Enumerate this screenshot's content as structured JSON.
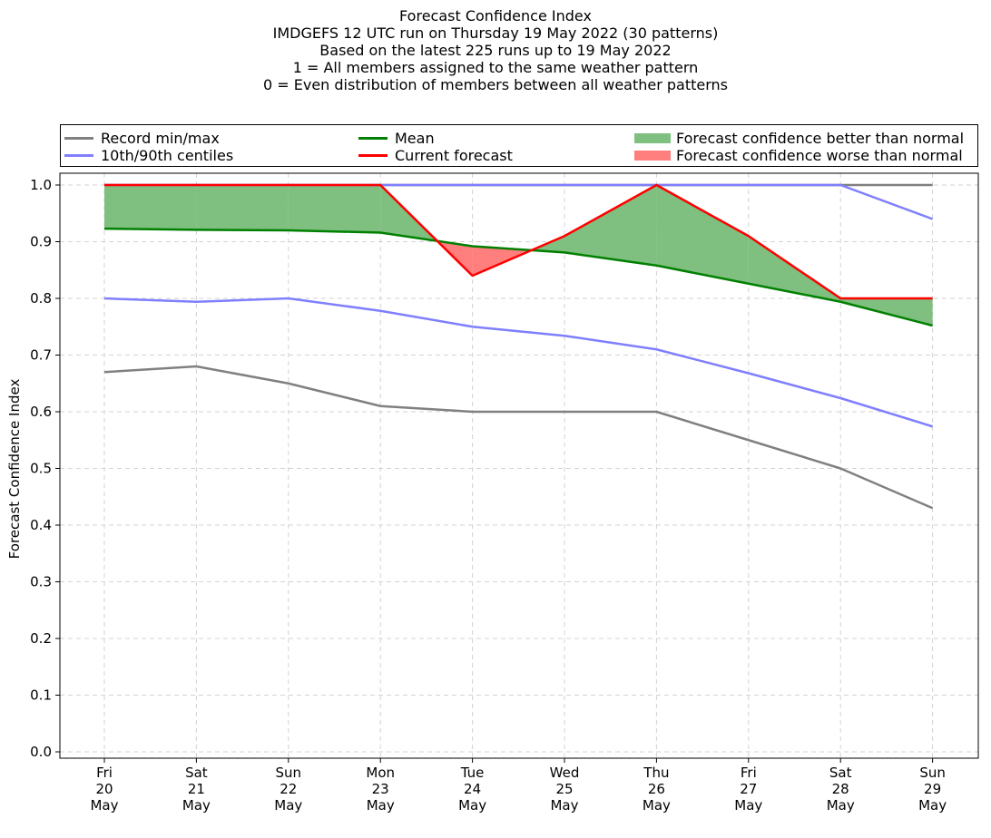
{
  "titles": {
    "line1": "Forecast Confidence Index",
    "line2": "IMDGEFS 12 UTC run on Thursday 19 May 2022 (30 patterns)",
    "line3": "Based on the latest 225 runs up to 19 May 2022",
    "line4": "1 = All members assigned to the same weather pattern",
    "line5": "0 = Even distribution of members between all weather patterns"
  },
  "legend": {
    "record": "Record min/max",
    "centiles": "10th/90th centiles",
    "mean": "Mean",
    "current": "Current forecast",
    "better": "Forecast confidence better than normal",
    "worse": "Forecast confidence worse than normal"
  },
  "colors": {
    "record": "#808080",
    "centiles": "#7f7fff",
    "mean": "#008000",
    "current": "#ff0000",
    "better": "#7fbf7f",
    "worse": "#ff7f7f",
    "grid": "#d3d3d3"
  },
  "chart_data": {
    "type": "line",
    "ylabel": "Forecast Confidence Index",
    "ylim": [
      0.0,
      1.0
    ],
    "yticks": [
      "0.0",
      "0.1",
      "0.2",
      "0.3",
      "0.4",
      "0.5",
      "0.6",
      "0.7",
      "0.8",
      "0.9",
      "1.0"
    ],
    "categories": [
      {
        "day": "Fri",
        "date": "20",
        "month": "May"
      },
      {
        "day": "Sat",
        "date": "21",
        "month": "May"
      },
      {
        "day": "Sun",
        "date": "22",
        "month": "May"
      },
      {
        "day": "Mon",
        "date": "23",
        "month": "May"
      },
      {
        "day": "Tue",
        "date": "24",
        "month": "May"
      },
      {
        "day": "Wed",
        "date": "25",
        "month": "May"
      },
      {
        "day": "Thu",
        "date": "26",
        "month": "May"
      },
      {
        "day": "Fri",
        "date": "27",
        "month": "May"
      },
      {
        "day": "Sat",
        "date": "28",
        "month": "May"
      },
      {
        "day": "Sun",
        "date": "29",
        "month": "May"
      }
    ],
    "series": [
      {
        "name": "Record min",
        "key": "record",
        "values": [
          0.67,
          0.68,
          0.65,
          0.61,
          0.6,
          0.6,
          0.6,
          0.55,
          0.5,
          0.43
        ]
      },
      {
        "name": "Record max",
        "key": "record",
        "values": [
          1.0,
          1.0,
          1.0,
          1.0,
          1.0,
          1.0,
          1.0,
          1.0,
          1.0,
          1.0
        ]
      },
      {
        "name": "10th centile",
        "key": "centiles",
        "values": [
          0.8,
          0.794,
          0.8,
          0.778,
          0.75,
          0.734,
          0.71,
          0.668,
          0.624,
          0.574
        ]
      },
      {
        "name": "90th centile",
        "key": "centiles",
        "values": [
          1.0,
          1.0,
          1.0,
          1.0,
          1.0,
          1.0,
          1.0,
          1.0,
          1.0,
          0.94
        ]
      },
      {
        "name": "Mean",
        "key": "mean",
        "values": [
          0.923,
          0.921,
          0.92,
          0.916,
          0.892,
          0.881,
          0.858,
          0.826,
          0.794,
          0.752
        ]
      },
      {
        "name": "Current forecast",
        "key": "current",
        "values": [
          1.0,
          1.0,
          1.0,
          1.0,
          0.84,
          0.91,
          1.0,
          0.91,
          0.8,
          0.8
        ]
      }
    ]
  }
}
